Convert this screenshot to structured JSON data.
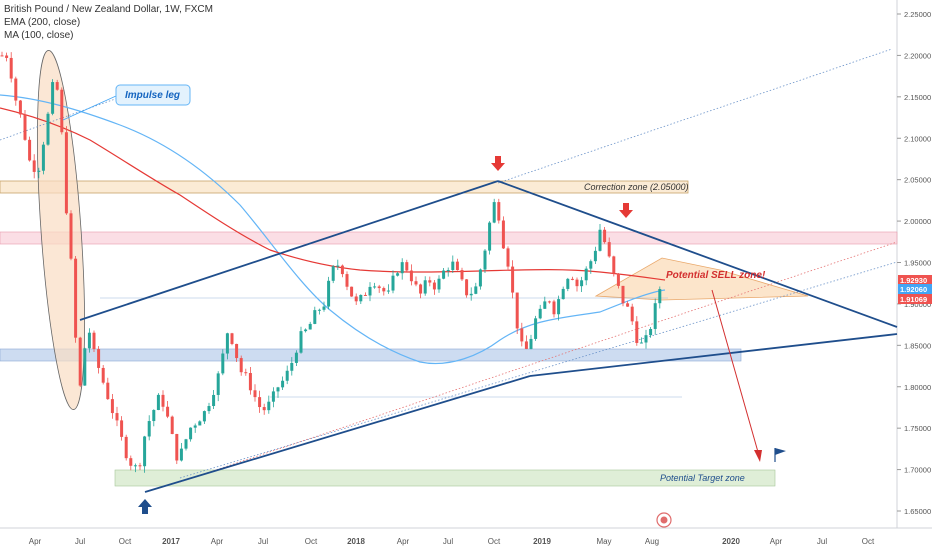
{
  "chart_data": {
    "type": "candlestick",
    "title": "British Pound / New Zealand Dollar, 1W, FXCM",
    "indicators": [
      "EMA (200, close)",
      "MA (100, close)"
    ],
    "y_ticks": [
      "2.25000",
      "2.20000",
      "2.15000",
      "2.10000",
      "2.05000",
      "2.00000",
      "1.95000",
      "1.90000",
      "1.85000",
      "1.80000",
      "1.75000",
      "1.70000",
      "1.65000"
    ],
    "x_ticks": [
      "Apr",
      "Jul",
      "Oct",
      "2017",
      "Apr",
      "Jul",
      "Oct",
      "2018",
      "Apr",
      "Jul",
      "Oct",
      "2019",
      "May",
      "Aug",
      "2020",
      "Apr",
      "Jul",
      "Oct"
    ],
    "price_labels": [
      {
        "value": "1.92930",
        "color": "#ef5350"
      },
      {
        "value": "1.92060",
        "color": "#42a5f5"
      },
      {
        "value": "1.91069",
        "color": "#ef5350"
      }
    ],
    "annotations": {
      "impulse_leg": "Impulse leg",
      "correction_zone": "Correction zone (2.05000)",
      "potential_sell": "Potential SELL zone!",
      "potential_target": "Potential Target zone"
    },
    "colors": {
      "up": "#26a69a",
      "down": "#ef5350",
      "ema": "#e53935",
      "ma": "#64b5f6",
      "trendline": "#1f4e8c"
    }
  }
}
